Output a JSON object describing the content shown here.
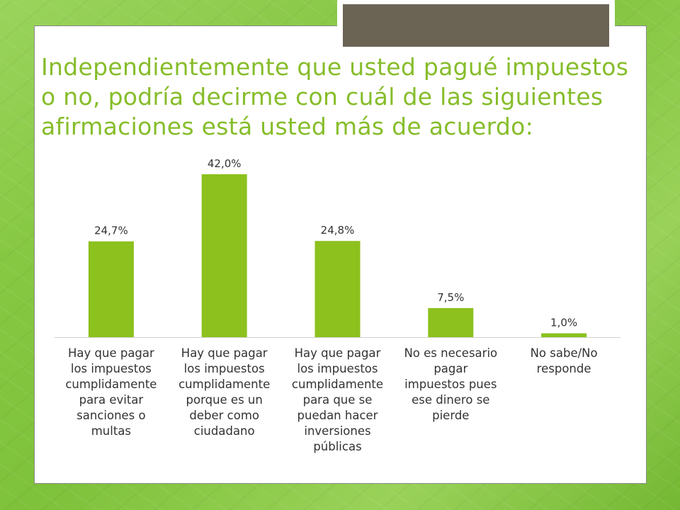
{
  "title": "Independientemente que usted pagué impuestos o no, podría decirme con cuál de las siguientes afirmaciones está usted más de acuerdo:",
  "colors": {
    "bar": "#8cc11e",
    "title": "#86bd2a",
    "tab": "#6b6455"
  },
  "chart_data": {
    "type": "bar",
    "categories": [
      "Hay que pagar\nlos impuestos\ncumplidamente\npara evitar\nsanciones o\nmultas",
      "Hay que pagar\nlos impuestos\ncumplidamente\nporque es un\ndeber como\nciudadano",
      "Hay que pagar\nlos impuestos\ncumplidamente\npara que se\npuedan hacer\ninversiones\npúblicas",
      "No es necesario\npagar\nimpuestos pues\nese dinero se\npierde",
      "No sabe/No\nresponde"
    ],
    "values": [
      24.7,
      42.0,
      24.8,
      7.5,
      1.0
    ],
    "data_labels": [
      "24,7%",
      "42,0%",
      "24,8%",
      "7,5%",
      "1,0%"
    ],
    "ylim": [
      0,
      45
    ],
    "grid": false,
    "legend": "none"
  }
}
